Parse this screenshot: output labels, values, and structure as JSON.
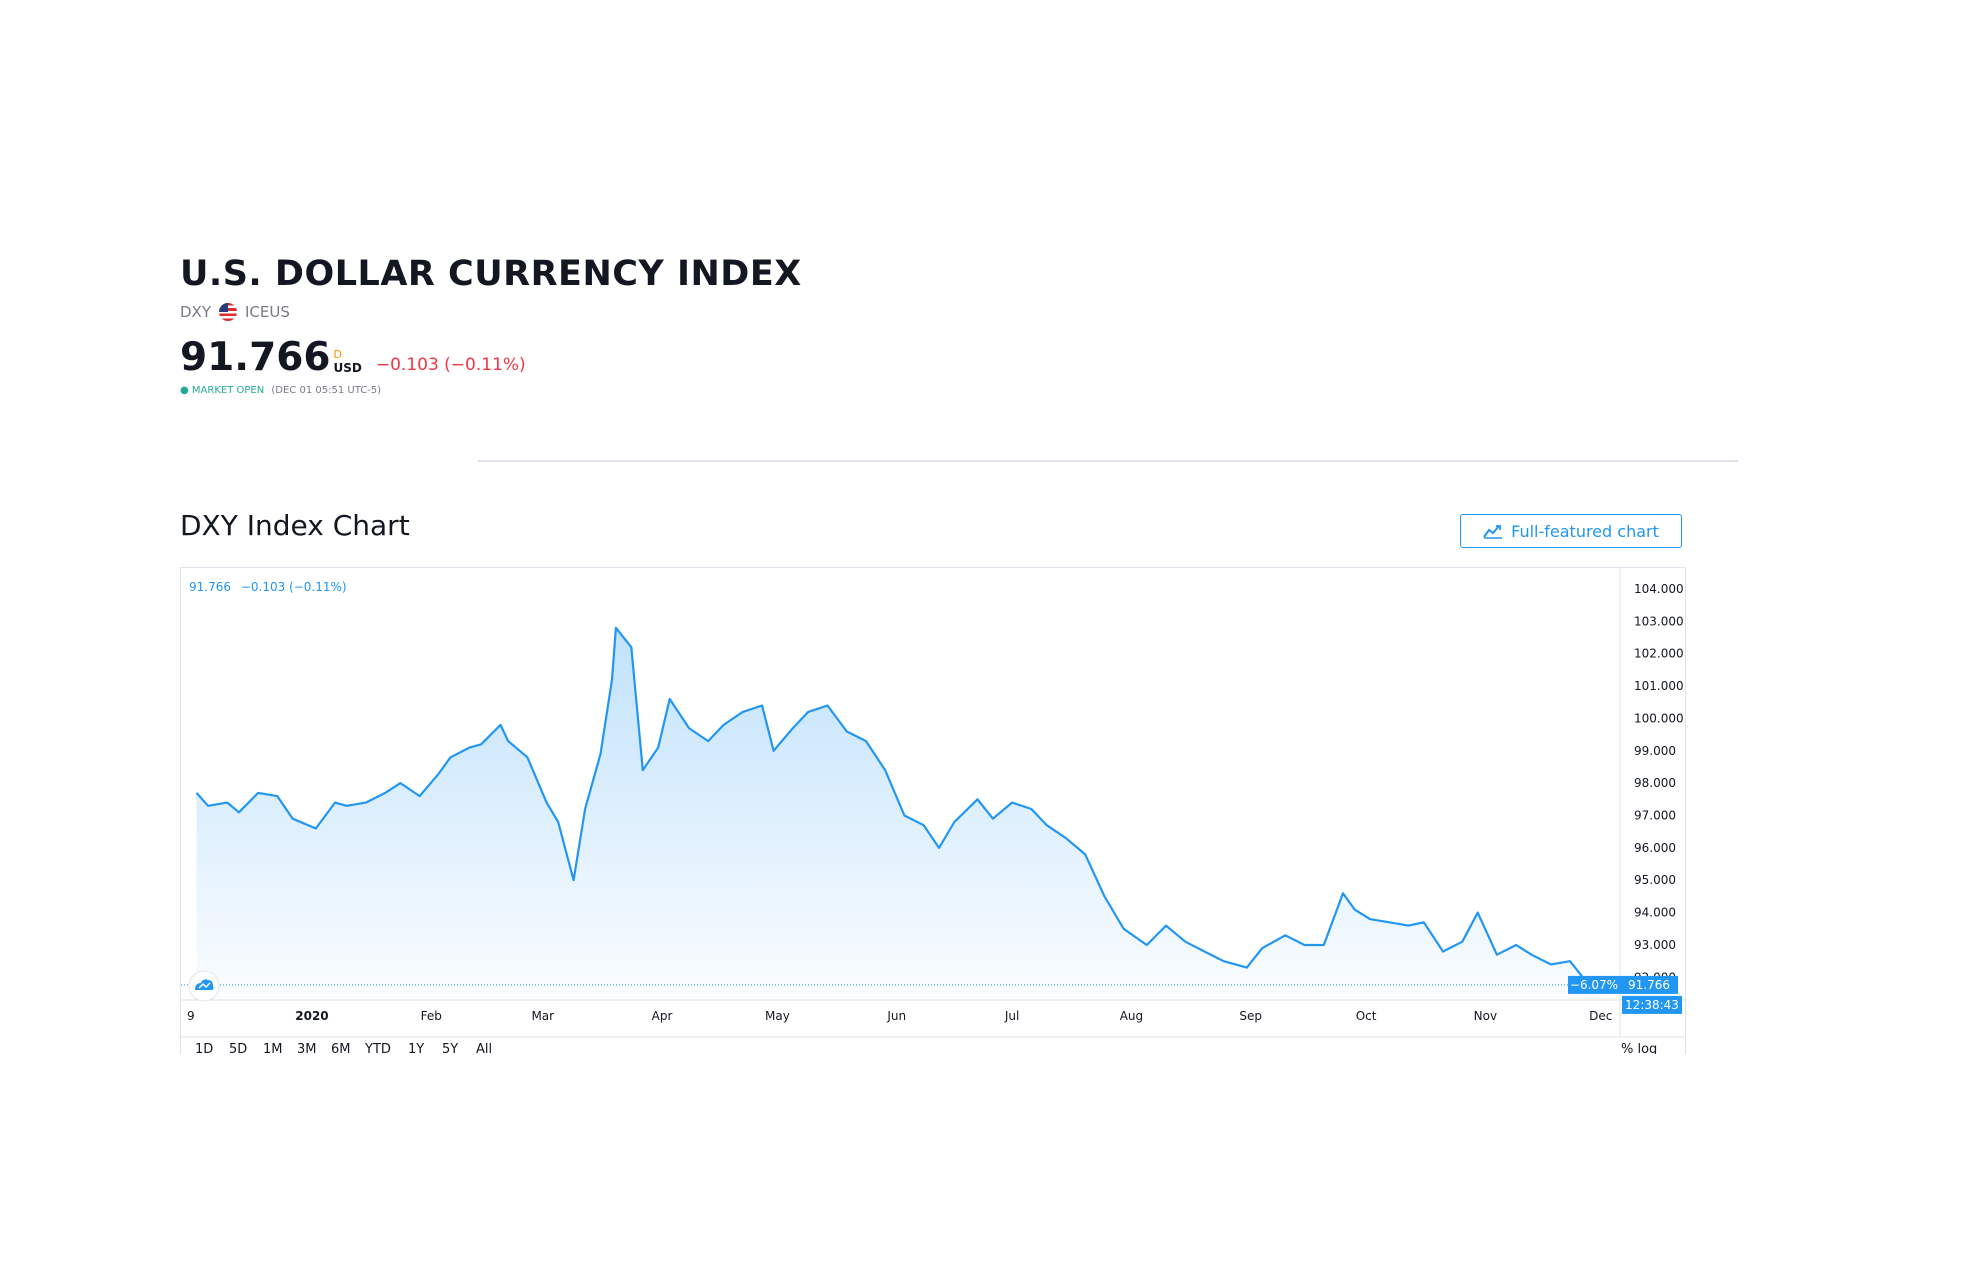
{
  "header": {
    "title": "U.S. DOLLAR CURRENCY INDEX",
    "symbol": "DXY",
    "exchange": "ICEUS",
    "price": "91.766",
    "price_flag": "D",
    "currency": "USD",
    "change": "−0.103 (−0.11%)",
    "market_status": "MARKET OPEN",
    "market_time": "(DEC 01 05:51 UTC-5)"
  },
  "chart_section": {
    "title": "DXY Index Chart",
    "full_chart_button": "Full-featured chart"
  },
  "colors": {
    "line": "#2196f3",
    "negative": "#f23645",
    "market_open": "#22ab94",
    "label_bg": "#2196f3"
  },
  "icons": [
    "us-flag-icon",
    "chart-icon",
    "tradingview-logo-icon"
  ],
  "chart_data": {
    "type": "area",
    "legend": {
      "price": "91.766",
      "change": "−0.103 (−0.11%)"
    },
    "x_tick_labels": [
      "9",
      "2020",
      "Feb",
      "Mar",
      "Apr",
      "May",
      "Jun",
      "Jul",
      "Aug",
      "Sep",
      "Oct",
      "Nov",
      "Dec"
    ],
    "y_tick_labels": [
      "104.000",
      "103.000",
      "102.000",
      "101.000",
      "100.000",
      "99.000",
      "98.000",
      "97.000",
      "96.000",
      "95.000",
      "94.000",
      "93.000",
      "92.000"
    ],
    "ylim": [
      91.3,
      104.4
    ],
    "last_price_label": "91.766",
    "last_change_label": "−6.07%",
    "countdown_label": "12:38:43",
    "last_price_line": true,
    "grid": false,
    "x": [
      "2019-12-02",
      "2019-12-05",
      "2019-12-10",
      "2019-12-13",
      "2019-12-18",
      "2019-12-23",
      "2019-12-27",
      "2020-01-02",
      "2020-01-07",
      "2020-01-10",
      "2020-01-15",
      "2020-01-20",
      "2020-01-24",
      "2020-01-29",
      "2020-02-03",
      "2020-02-06",
      "2020-02-11",
      "2020-02-14",
      "2020-02-19",
      "2020-02-21",
      "2020-02-26",
      "2020-03-02",
      "2020-03-05",
      "2020-03-09",
      "2020-03-12",
      "2020-03-16",
      "2020-03-19",
      "2020-03-20",
      "2020-03-24",
      "2020-03-27",
      "2020-03-31",
      "2020-04-03",
      "2020-04-08",
      "2020-04-13",
      "2020-04-17",
      "2020-04-22",
      "2020-04-27",
      "2020-04-30",
      "2020-05-05",
      "2020-05-09",
      "2020-05-14",
      "2020-05-19",
      "2020-05-24",
      "2020-05-29",
      "2020-06-03",
      "2020-06-08",
      "2020-06-12",
      "2020-06-16",
      "2020-06-22",
      "2020-06-26",
      "2020-07-01",
      "2020-07-06",
      "2020-07-10",
      "2020-07-15",
      "2020-07-20",
      "2020-07-25",
      "2020-07-30",
      "2020-08-05",
      "2020-08-10",
      "2020-08-15",
      "2020-08-20",
      "2020-08-25",
      "2020-08-31",
      "2020-09-04",
      "2020-09-10",
      "2020-09-15",
      "2020-09-20",
      "2020-09-25",
      "2020-09-28",
      "2020-10-02",
      "2020-10-07",
      "2020-10-12",
      "2020-10-16",
      "2020-10-21",
      "2020-10-26",
      "2020-10-30",
      "2020-11-04",
      "2020-11-09",
      "2020-11-13",
      "2020-11-18",
      "2020-11-23",
      "2020-11-27",
      "2020-12-01"
    ],
    "series": [
      {
        "values": [
          97.7,
          97.3,
          97.4,
          97.1,
          97.7,
          97.6,
          96.9,
          96.6,
          97.4,
          97.3,
          97.4,
          97.7,
          98.0,
          97.6,
          98.3,
          98.8,
          99.1,
          99.2,
          99.8,
          99.3,
          98.8,
          97.4,
          96.8,
          95.0,
          97.2,
          98.9,
          101.2,
          102.8,
          102.2,
          98.4,
          99.1,
          100.6,
          99.7,
          99.3,
          99.8,
          100.2,
          100.4,
          99.0,
          99.7,
          100.2,
          100.4,
          99.6,
          99.3,
          98.4,
          97.0,
          96.7,
          96.0,
          96.8,
          97.5,
          96.9,
          97.4,
          97.2,
          96.7,
          96.3,
          95.8,
          94.5,
          93.5,
          93.0,
          93.6,
          93.1,
          92.8,
          92.5,
          92.3,
          92.9,
          93.3,
          93.0,
          93.0,
          94.6,
          94.1,
          93.8,
          93.7,
          93.6,
          93.7,
          92.8,
          93.1,
          94.0,
          92.7,
          93.0,
          92.7,
          92.4,
          92.5,
          91.9,
          91.766
        ]
      }
    ]
  },
  "bottom_bar": {
    "ranges": [
      "1D",
      "5D",
      "1M",
      "3M",
      "6M",
      "YTD",
      "1Y",
      "5Y",
      "All"
    ],
    "percent_toggle": "% log"
  }
}
